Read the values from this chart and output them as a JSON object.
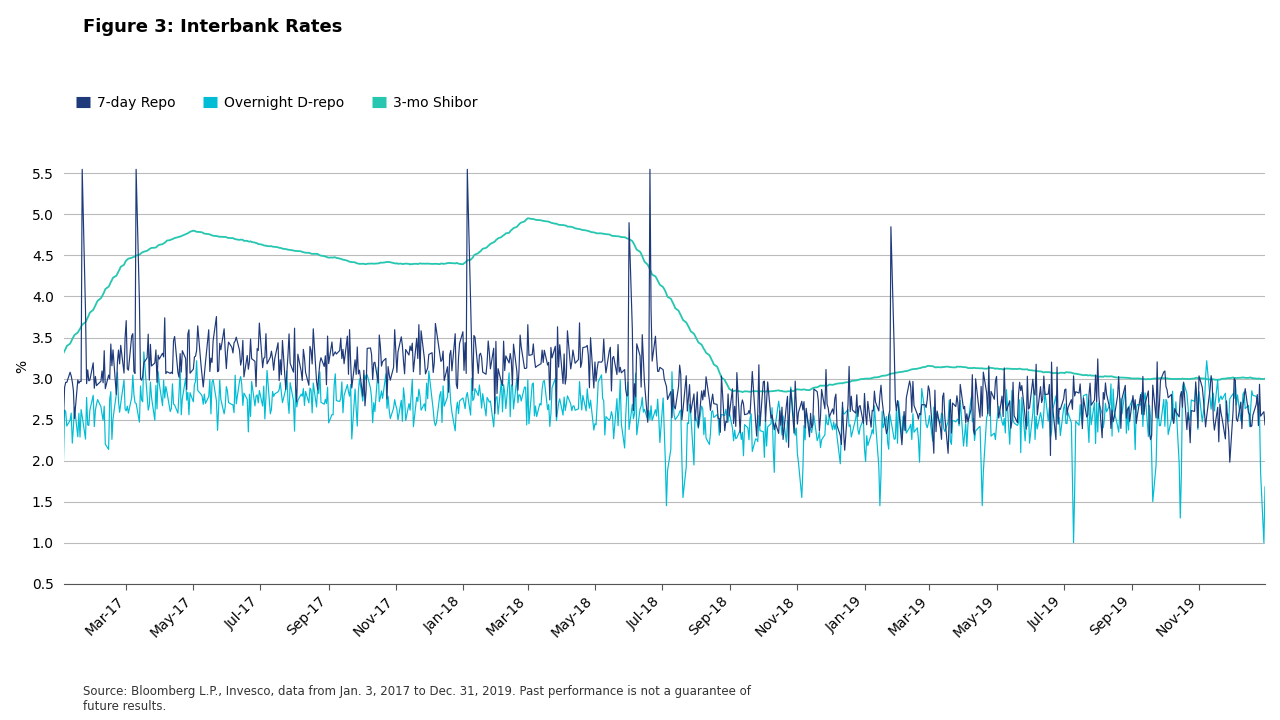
{
  "title": "Figure 3: Interbank Rates",
  "ylabel": "%",
  "source_text": "Source: Bloomberg L.P., Invesco, data from Jan. 3, 2017 to Dec. 31, 2019. Past performance is not a guarantee of\nfuture results.",
  "legend_labels": [
    "7-day Repo",
    "Overnight D-repo",
    "3-mo Shibor"
  ],
  "colors": {
    "repo_7day": "#1f3a7a",
    "overnight_drepo": "#00bcd4",
    "shibor_3mo": "#26c6b0"
  },
  "ylim": [
    0.5,
    5.8
  ],
  "yticks": [
    0.5,
    1.0,
    1.5,
    2.0,
    2.5,
    3.0,
    3.5,
    4.0,
    4.5,
    5.0,
    5.5
  ],
  "background_color": "#ffffff",
  "title_fontsize": 13,
  "legend_fontsize": 10,
  "tick_fontsize": 10,
  "figsize": [
    12.8,
    7.2
  ],
  "dpi": 100
}
